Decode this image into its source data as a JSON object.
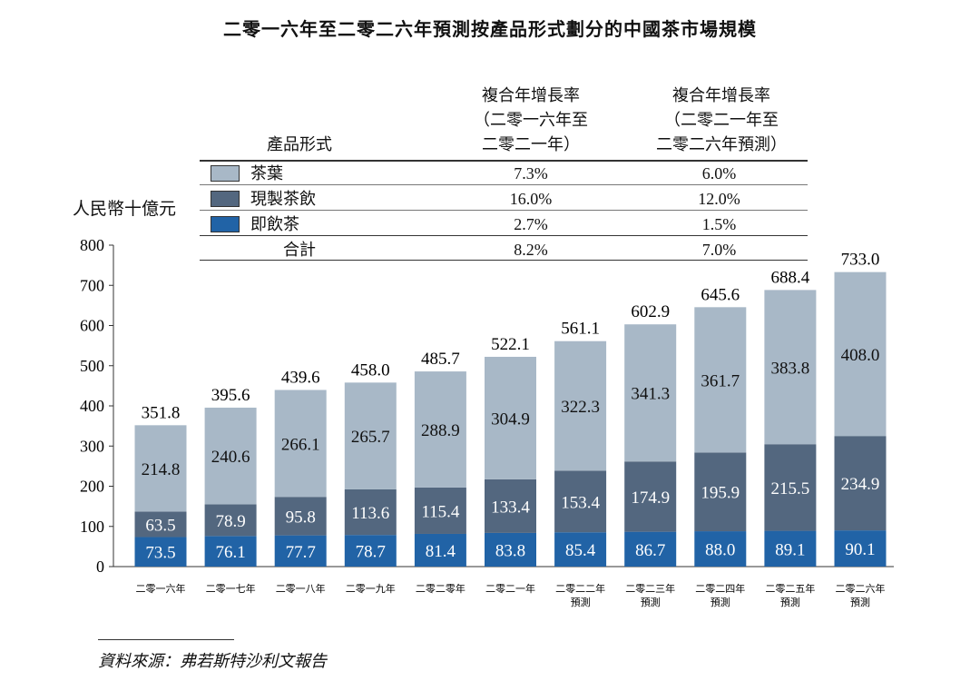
{
  "chart_data": {
    "type": "bar",
    "stacked": true,
    "title": "二零一六年至二零二六年預測按產品形式劃分的中國茶市場規模",
    "ylabel": "人民幣十億元",
    "ylim": [
      0,
      800
    ],
    "yticks": [
      0,
      100,
      200,
      300,
      400,
      500,
      600,
      700,
      800
    ],
    "grid": false,
    "categories": [
      [
        "二零一六年"
      ],
      [
        "二零一七年"
      ],
      [
        "二零一八年"
      ],
      [
        "二零一九年"
      ],
      [
        "二零二零年"
      ],
      [
        "二零二一年"
      ],
      [
        "二零二二年",
        "預測"
      ],
      [
        "二零二三年",
        "預測"
      ],
      [
        "二零二四年",
        "預測"
      ],
      [
        "二零二五年",
        "預測"
      ],
      [
        "二零二六年",
        "預測"
      ]
    ],
    "series": [
      {
        "name": "即飲茶",
        "color": "#2163a6",
        "values": [
          73.5,
          76.1,
          77.7,
          78.7,
          81.4,
          83.8,
          85.4,
          86.7,
          88.0,
          89.1,
          90.1
        ]
      },
      {
        "name": "現製茶飲",
        "color": "#53677f",
        "values": [
          63.5,
          78.9,
          95.8,
          113.6,
          115.4,
          133.4,
          153.4,
          174.9,
          195.9,
          215.5,
          234.9
        ]
      },
      {
        "name": "茶葉",
        "color": "#a8b8c7",
        "values": [
          214.8,
          240.6,
          266.1,
          265.7,
          288.9,
          304.9,
          322.3,
          341.3,
          361.7,
          383.8,
          408.0
        ]
      }
    ],
    "totals": [
      351.8,
      395.6,
      439.6,
      458.0,
      485.7,
      522.1,
      561.1,
      602.9,
      645.6,
      688.4,
      733.0
    ],
    "legend_table": {
      "header": {
        "label": "產品形式",
        "col1": [
          "複合年增長率",
          "（二零一六年至",
          "二零二一年）"
        ],
        "col2": [
          "複合年增長率",
          "（二零二一年至",
          "二零二六年預測）"
        ]
      },
      "rows": [
        {
          "label": "茶葉",
          "color": "#a8b8c7",
          "cagr1": "7.3%",
          "cagr2": "6.0%"
        },
        {
          "label": "現製茶飲",
          "color": "#53677f",
          "cagr1": "16.0%",
          "cagr2": "12.0%"
        },
        {
          "label": "即飲茶",
          "color": "#2163a6",
          "cagr1": "2.7%",
          "cagr2": "1.5%"
        },
        {
          "label": "合計",
          "cagr1": "8.2%",
          "cagr2": "7.0%"
        }
      ]
    }
  },
  "source": "資料來源：弗若斯特沙利文報告"
}
